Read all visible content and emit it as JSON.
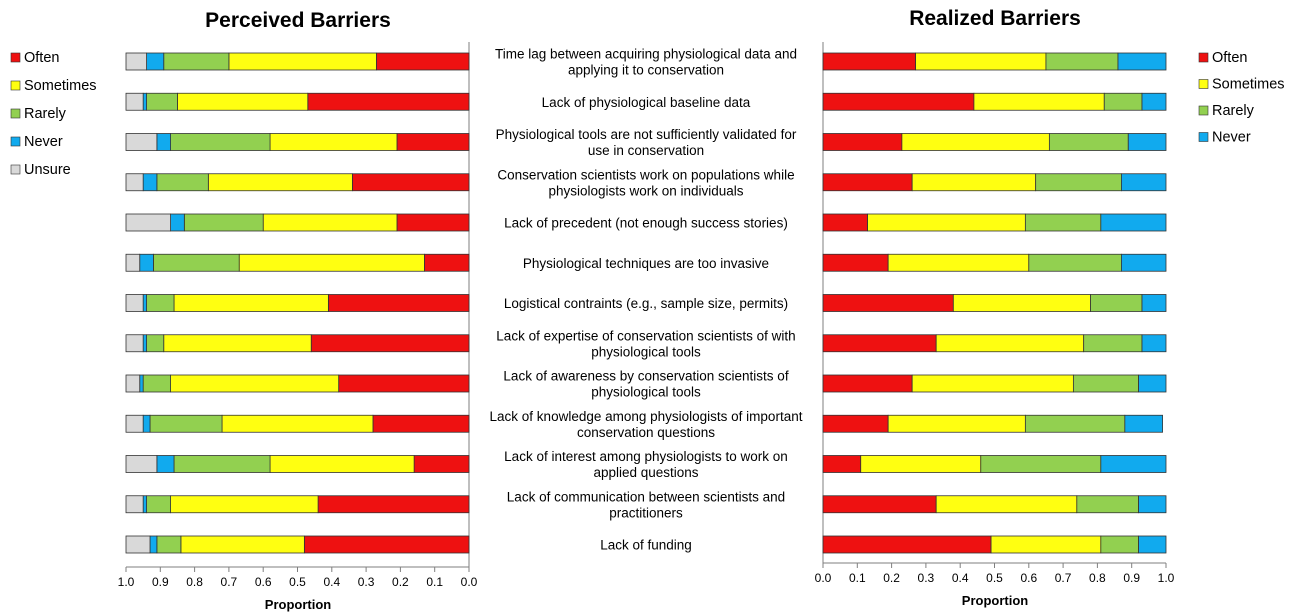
{
  "colors": {
    "Often": "#ee1111",
    "Sometimes": "#ffff11",
    "Rarely": "#92d050",
    "Never": "#11aaee",
    "Unsure": "#d9d9d9",
    "axis": "#7f7f7f",
    "border": "#333333"
  },
  "categories": [
    "Time lag between acquiring physiological data and applying it to conservation",
    "Lack of physiological baseline data",
    "Physiological tools are not sufficiently validated for use in conservation",
    "Conservation scientists work on populations while physiologists work on individuals",
    "Lack of precedent (not enough success stories)",
    "Physiological techniques are too invasive",
    "Logistical contraints (e.g., sample size, permits)",
    "Lack of expertise of conservation scientists of with physiological tools",
    "Lack of awareness by conservation scientists of physiological tools",
    "Lack of knowledge among physiologists of important conservation questions",
    "Lack of interest among physiologists to work on applied questions",
    "Lack of communication between scientists and practitioners",
    "Lack of funding"
  ],
  "category_lines": [
    [
      "Time lag between acquiring physiological data and",
      "applying it to conservation"
    ],
    [
      "Lack of physiological baseline data"
    ],
    [
      "Physiological tools are not sufficiently validated for",
      "use in conservation"
    ],
    [
      "Conservation scientists work on populations while",
      "physiologists work on individuals"
    ],
    [
      "Lack of precedent (not enough success stories)"
    ],
    [
      "Physiological techniques are too invasive"
    ],
    [
      "Logistical contraints (e.g., sample size, permits)"
    ],
    [
      "Lack of expertise of conservation scientists of with",
      "physiological tools"
    ],
    [
      "Lack of awareness by conservation scientists of",
      "physiological tools"
    ],
    [
      "Lack of knowledge among physiologists of important",
      "conservation questions"
    ],
    [
      "Lack of interest among physiologists to work on",
      "applied questions"
    ],
    [
      "Lack of communication between scientists and",
      "practitioners"
    ],
    [
      "Lack of funding"
    ]
  ],
  "chart_data": [
    {
      "type": "bar",
      "stacked": true,
      "orientation": "horizontal",
      "title": "Perceived Barriers",
      "xlabel": "Proportion",
      "xlim": [
        1.0,
        0.0
      ],
      "x_reversed": true,
      "xticks": [
        "1.0",
        "0.9",
        "0.8",
        "0.7",
        "0.6",
        "0.5",
        "0.4",
        "0.3",
        "0.2",
        "0.1",
        "0.0"
      ],
      "legend": {
        "position": "left",
        "entries": [
          "Often",
          "Sometimes",
          "Rarely",
          "Never",
          "Unsure"
        ]
      },
      "series": [
        {
          "name": "Often",
          "values": [
            0.27,
            0.47,
            0.21,
            0.34,
            0.21,
            0.13,
            0.41,
            0.46,
            0.38,
            0.28,
            0.16,
            0.44,
            0.48
          ]
        },
        {
          "name": "Sometimes",
          "values": [
            0.43,
            0.38,
            0.37,
            0.42,
            0.39,
            0.54,
            0.45,
            0.43,
            0.49,
            0.44,
            0.42,
            0.43,
            0.36
          ]
        },
        {
          "name": "Rarely",
          "values": [
            0.19,
            0.09,
            0.29,
            0.15,
            0.23,
            0.25,
            0.08,
            0.05,
            0.08,
            0.21,
            0.28,
            0.07,
            0.07
          ]
        },
        {
          "name": "Never",
          "values": [
            0.05,
            0.01,
            0.04,
            0.04,
            0.04,
            0.04,
            0.01,
            0.01,
            0.01,
            0.02,
            0.05,
            0.01,
            0.02
          ]
        },
        {
          "name": "Unsure",
          "values": [
            0.06,
            0.05,
            0.09,
            0.05,
            0.13,
            0.04,
            0.05,
            0.05,
            0.04,
            0.05,
            0.09,
            0.05,
            0.07
          ]
        }
      ]
    },
    {
      "type": "bar",
      "stacked": true,
      "orientation": "horizontal",
      "title": "Realized Barriers",
      "xlabel": "Proportion",
      "xlim": [
        0.0,
        1.0
      ],
      "xticks": [
        "0.0",
        "0.1",
        "0.2",
        "0.3",
        "0.4",
        "0.5",
        "0.6",
        "0.7",
        "0.8",
        "0.9",
        "1.0"
      ],
      "legend": {
        "position": "right",
        "entries": [
          "Often",
          "Sometimes",
          "Rarely",
          "Never"
        ]
      },
      "series": [
        {
          "name": "Often",
          "values": [
            0.27,
            0.44,
            0.23,
            0.26,
            0.13,
            0.19,
            0.38,
            0.33,
            0.26,
            0.19,
            0.11,
            0.33,
            0.49
          ]
        },
        {
          "name": "Sometimes",
          "values": [
            0.38,
            0.38,
            0.43,
            0.36,
            0.46,
            0.41,
            0.4,
            0.43,
            0.47,
            0.4,
            0.35,
            0.41,
            0.32
          ]
        },
        {
          "name": "Rarely",
          "values": [
            0.21,
            0.11,
            0.23,
            0.25,
            0.22,
            0.27,
            0.15,
            0.17,
            0.19,
            0.29,
            0.35,
            0.18,
            0.11
          ]
        },
        {
          "name": "Never",
          "values": [
            0.14,
            0.07,
            0.11,
            0.13,
            0.19,
            0.13,
            0.07,
            0.07,
            0.08,
            0.11,
            0.19,
            0.08,
            0.08
          ]
        }
      ]
    }
  ]
}
